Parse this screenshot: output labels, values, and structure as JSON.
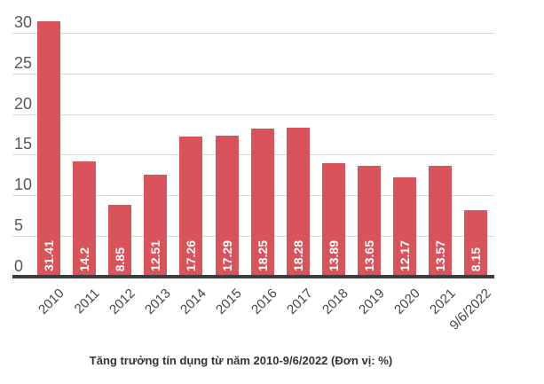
{
  "chart_data": {
    "type": "bar",
    "title": "Tăng trưởng tín dụng từ năm 2010-9/6/2022 (Đơn vị: %)",
    "categories": [
      "2010",
      "2011",
      "2012",
      "2013",
      "2014",
      "2015",
      "2016",
      "2017",
      "2018",
      "2019",
      "2020",
      "2021",
      "9/6/2022"
    ],
    "values": [
      31.41,
      14.2,
      8.85,
      12.51,
      17.26,
      17.29,
      18.25,
      18.28,
      13.89,
      13.65,
      12.17,
      13.57,
      8.15
    ],
    "value_labels": [
      "31.41",
      "14.2",
      "8.85",
      "12.51",
      "17.26",
      "17.29",
      "18.25",
      "18.28",
      "13.89",
      "13.65",
      "12.17",
      "13.57",
      "8.15"
    ],
    "yticks": [
      0,
      5,
      10,
      15,
      20,
      25,
      30
    ],
    "ylim": [
      0,
      30
    ],
    "xlabel": "",
    "ylabel": "",
    "grid": "horizontal",
    "legend_position": "none",
    "colors": {
      "bar": "#d8545a",
      "gridline": "#d9d9d9",
      "axis_line": "#3b3b3b",
      "y_tick_label": "#57585a",
      "x_tick_label": "#444444",
      "value_label": "#ffffff",
      "title": "#333333"
    }
  }
}
